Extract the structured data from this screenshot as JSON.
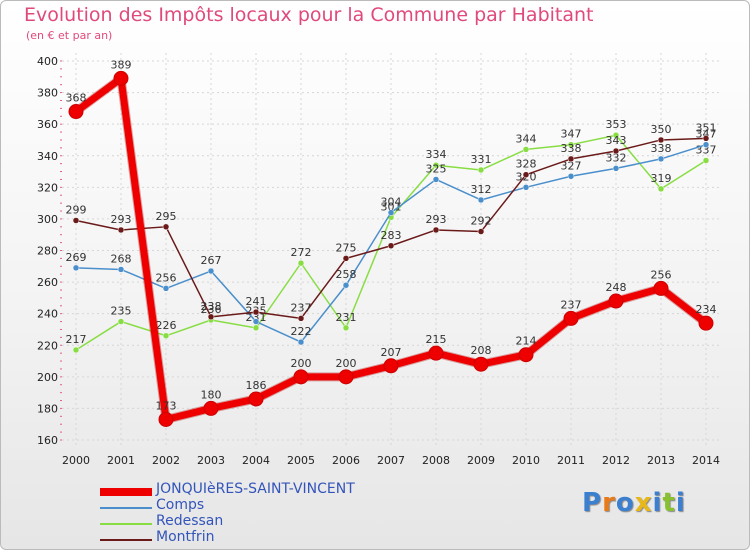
{
  "title": "Evolution des Impôts locaux pour la Commune par Habitant",
  "subtitle": "(en € et par an)",
  "logo": "Proxiti",
  "chart_data": {
    "type": "line",
    "x": [
      "2000",
      "2001",
      "2002",
      "2003",
      "2004",
      "2005",
      "2006",
      "2007",
      "2008",
      "2009",
      "2010",
      "2011",
      "2012",
      "2013",
      "2014"
    ],
    "ylim": [
      160,
      400
    ],
    "yticks": [
      160,
      180,
      200,
      220,
      240,
      260,
      280,
      300,
      320,
      340,
      360,
      380,
      400
    ],
    "grid": true,
    "legend_position": "bottom-left",
    "series": [
      {
        "name": "Redessan",
        "color": "#88dd44",
        "width": 1.5,
        "values": [
          217,
          235,
          226,
          236,
          231,
          272,
          231,
          301,
          334,
          331,
          344,
          347,
          353,
          319,
          337
        ]
      },
      {
        "name": "Comps",
        "color": "#4a8fcc",
        "width": 1.5,
        "values": [
          269,
          268,
          256,
          267,
          235,
          222,
          258,
          304,
          325,
          312,
          320,
          327,
          332,
          338,
          347
        ]
      },
      {
        "name": "Montfrin",
        "color": "#6b1a1a",
        "width": 1.5,
        "values": [
          299,
          293,
          295,
          238,
          241,
          237,
          275,
          283,
          293,
          292,
          328,
          338,
          343,
          350,
          351
        ]
      },
      {
        "name": "JONQUIèRES-SAINT-VINCENT",
        "color": "#ee0000",
        "width": 7,
        "values": [
          368,
          389,
          173,
          180,
          186,
          200,
          200,
          207,
          215,
          208,
          214,
          237,
          248,
          256,
          234
        ]
      }
    ]
  }
}
